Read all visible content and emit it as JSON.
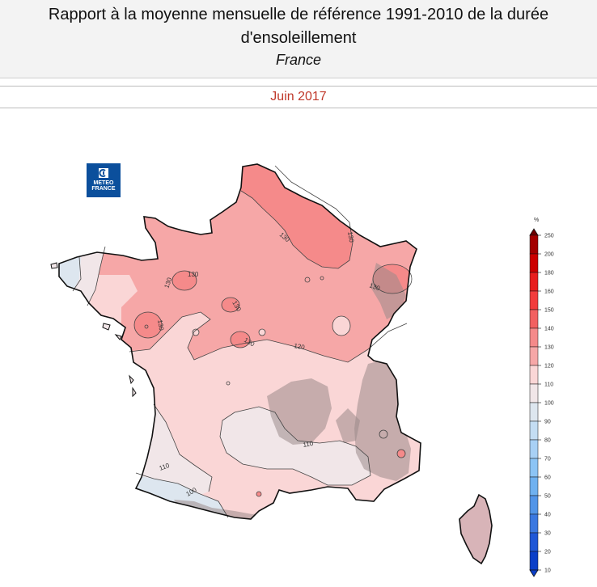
{
  "header": {
    "title": "Rapport à la moyenne mensuelle de référence 1991-2010 de la durée d'ensoleillement",
    "subtitle": "France"
  },
  "period": "Juin 2017",
  "logo": {
    "line1": "METEO",
    "line2": "FRANCE",
    "icon": "meteo-france-logo-icon"
  },
  "map": {
    "region": "France",
    "contour_labels": [
      "130",
      "130",
      "130",
      "130",
      "130",
      "130",
      "130",
      "130",
      "120",
      "110",
      "110",
      "100"
    ],
    "zones": [
      {
        "class": "130-140",
        "color": "#f58a8a"
      },
      {
        "class": "120-130",
        "color": "#f6a7a7"
      },
      {
        "class": "110-120",
        "color": "#fad6d6"
      },
      {
        "class": "100-110",
        "color": "#f1e6e8"
      },
      {
        "class": "90-100",
        "color": "#dde6ef"
      },
      {
        "class": "relief",
        "color": "#9b8a8a"
      }
    ]
  },
  "scale": {
    "unit": "%",
    "ticks": [
      "250",
      "200",
      "180",
      "160",
      "150",
      "140",
      "130",
      "120",
      "110",
      "100",
      "90",
      "80",
      "70",
      "60",
      "50",
      "40",
      "30",
      "20",
      "10"
    ],
    "colors": [
      "#6e0000",
      "#a30000",
      "#cc0000",
      "#e81e1e",
      "#f23c3c",
      "#f26161",
      "#f58a8a",
      "#f6a7a7",
      "#fad6d6",
      "#f1e6e8",
      "#dde6ef",
      "#c4ddf3",
      "#a8d0f5",
      "#8cc4f5",
      "#6fb1f0",
      "#5295e8",
      "#3b78e0",
      "#1f57d6",
      "#0b3fc8"
    ]
  }
}
